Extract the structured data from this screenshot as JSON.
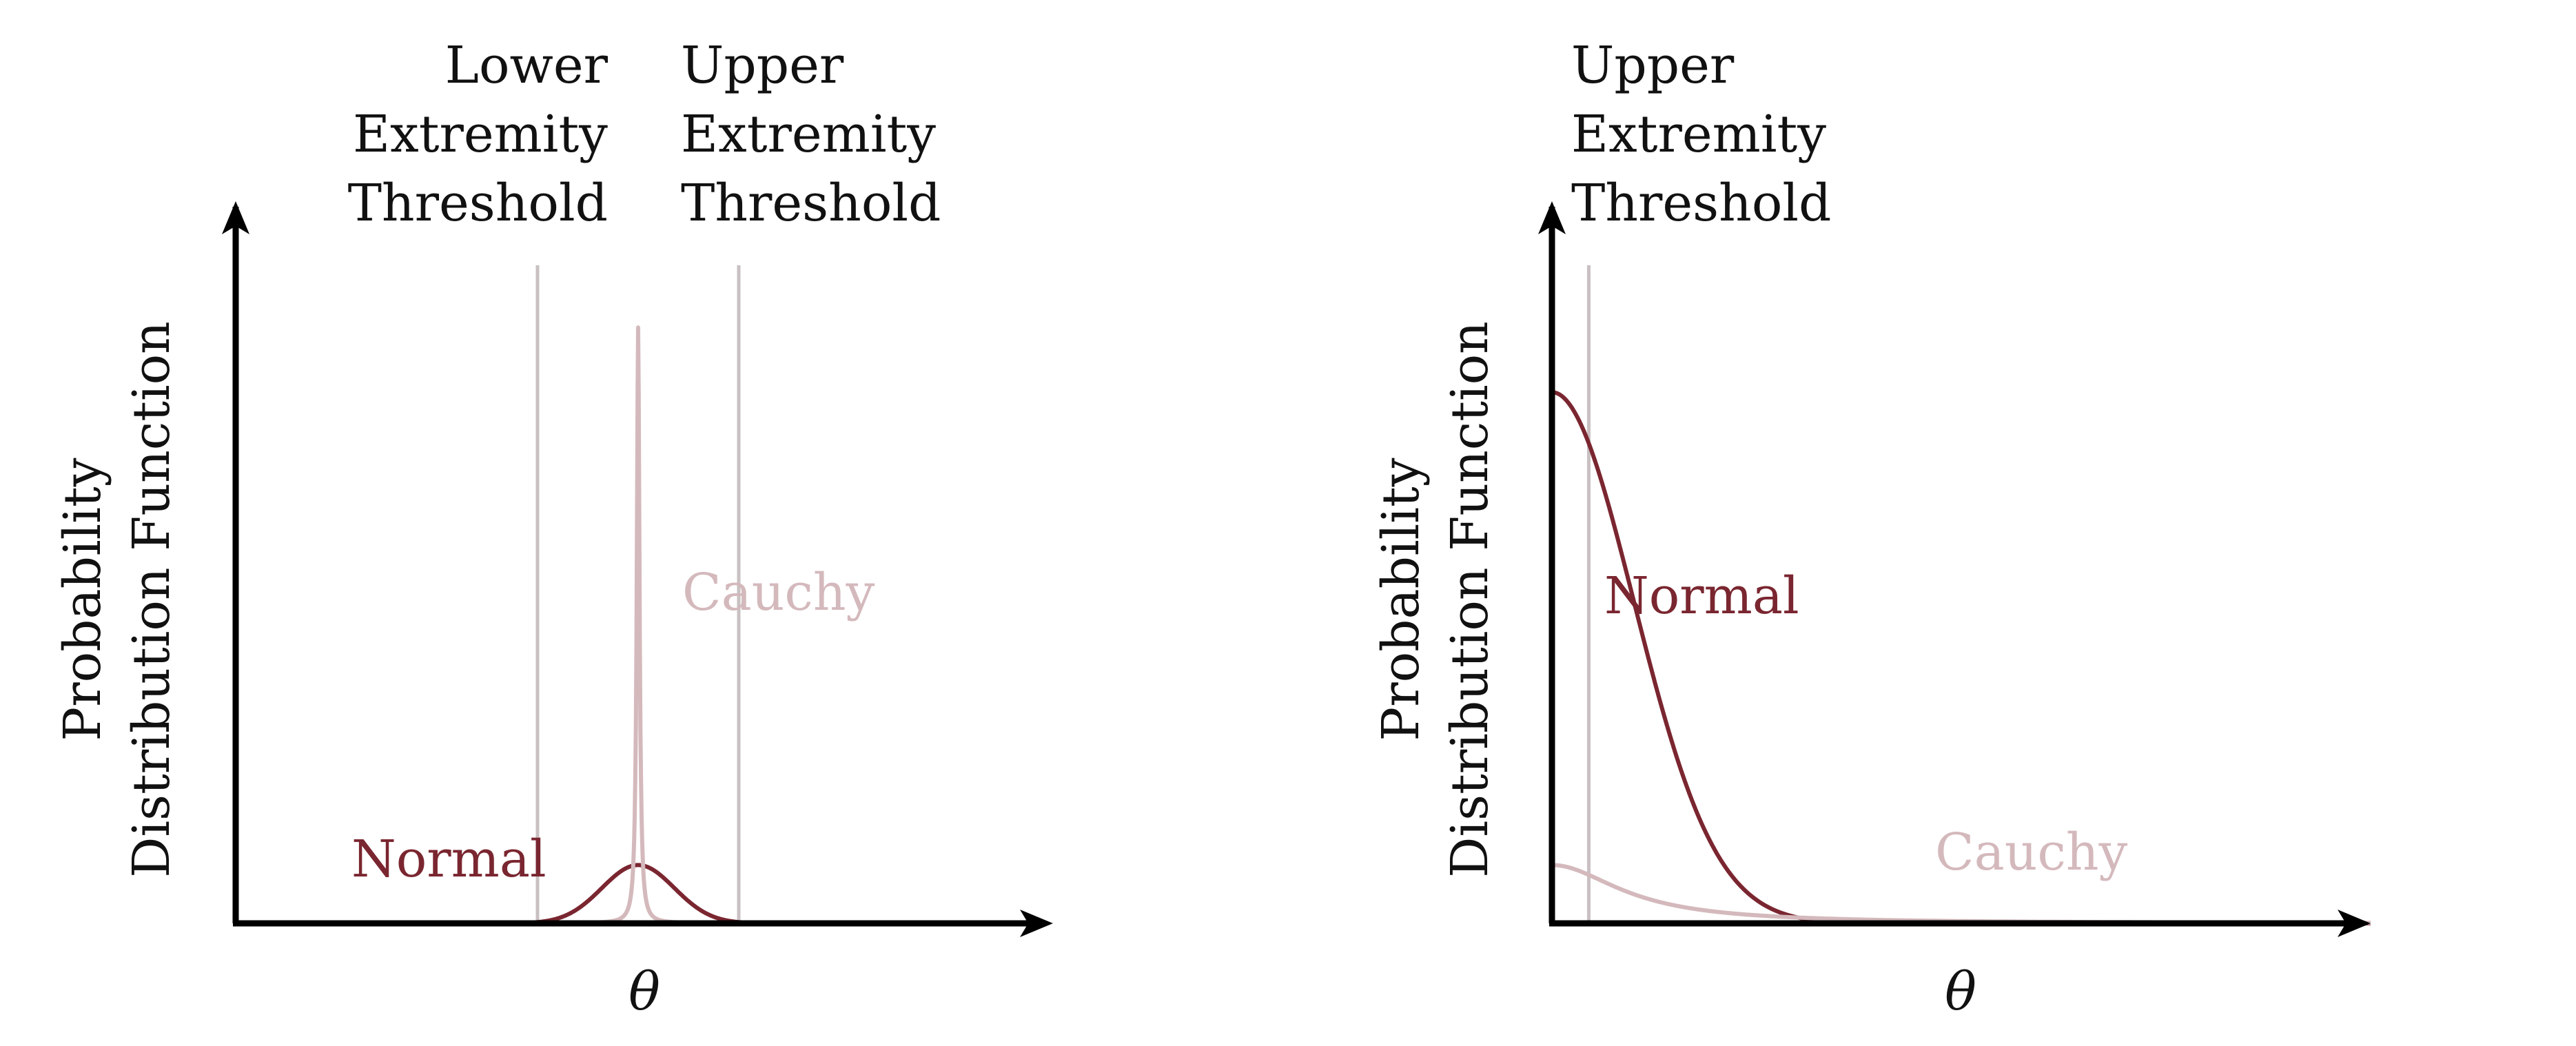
{
  "chart_data": [
    {
      "type": "line",
      "panel": "left",
      "xlabel": "θ",
      "ylabel": [
        "Probability",
        "Distribution Function"
      ],
      "xlim": [
        -1,
        1
      ],
      "ylim": [
        0,
        1
      ],
      "grid": false,
      "thresholds": [
        {
          "name": "lower",
          "lines": [
            "Lower",
            "Extremity",
            "Threshold"
          ],
          "x": -0.25
        },
        {
          "name": "upper",
          "lines": [
            "Upper",
            "Extremity",
            "Threshold"
          ],
          "x": 0.25
        }
      ],
      "series": [
        {
          "name": "Normal",
          "color": "#7a2630",
          "kind": "normal",
          "center": 0,
          "scale": 0.09,
          "peak": 0.09
        },
        {
          "name": "Cauchy",
          "color": "#d4b9bc",
          "kind": "cauchy",
          "center": 0,
          "scale": 0.004,
          "peak": 0.92
        }
      ]
    },
    {
      "type": "line",
      "panel": "right",
      "xlabel": "θ",
      "ylabel": [
        "Probability",
        "Distribution Function"
      ],
      "xlim": [
        0,
        1
      ],
      "ylim": [
        0,
        1
      ],
      "grid": false,
      "thresholds": [
        {
          "name": "upper",
          "lines": [
            "Upper",
            "Extremity",
            "Threshold"
          ],
          "x": 0.045
        }
      ],
      "series": [
        {
          "name": "Normal",
          "color": "#7a2630",
          "kind": "normal",
          "center": 0,
          "scale": 0.1,
          "peak": 0.82
        },
        {
          "name": "Cauchy",
          "color": "#d4b9bc",
          "kind": "cauchy",
          "center": 0,
          "scale": 0.1,
          "peak": 0.09
        }
      ]
    }
  ]
}
